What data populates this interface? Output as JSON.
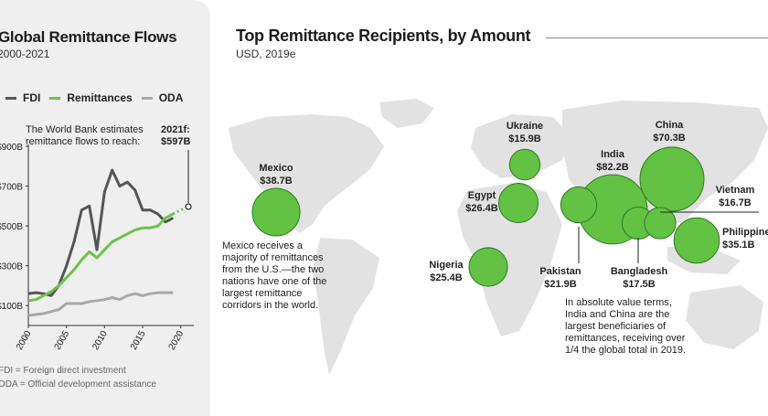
{
  "left": {
    "title": "Global Remittance Flows",
    "period": "2000-2021",
    "note": [
      "The World Bank estimates",
      "remittance flows to reach:"
    ],
    "forecast_label": "2021f:",
    "forecast_value": "$597B",
    "footnote1": "FDI = Foreign direct investment",
    "footnote2": "ODA = Official development assistance"
  },
  "right": {
    "title": "Top Remittance Recipients, by Amount",
    "subtitle": "USD, 2019e",
    "mexico_note": [
      "Mexico receives a",
      "majority of remittances",
      "from the U.S.—the two",
      "nations have one of the",
      "largest remittance",
      "corridors in the world."
    ],
    "asia_note": [
      "In absolute value terms,",
      "India and China are the",
      "largest beneficiaries of",
      "remittances, receiving over",
      "1/4 the global total in 2019."
    ]
  },
  "colors": {
    "fdi": "#555555",
    "remittances": "#6cc24a",
    "oda": "#a8a8a8",
    "bubble": "#63c143",
    "bubble_stroke": "#2f7a22",
    "map": "#e2e2e2"
  },
  "chart_data": [
    {
      "type": "line",
      "title": "Global Remittance Flows",
      "subtitle": "2000-2021",
      "xlim": [
        2000,
        2021
      ],
      "ylim": [
        0,
        900
      ],
      "x_ticks": [
        "2000",
        "2005",
        "2010",
        "2015",
        "2020"
      ],
      "y_ticks": [
        "$100B",
        "$300B",
        "$500B",
        "$700B",
        "$900B"
      ],
      "legend": [
        "FDI",
        "Remittances",
        "ODA"
      ],
      "series": [
        {
          "name": "FDI",
          "x": [
            2000,
            2001,
            2002,
            2003,
            2004,
            2005,
            2006,
            2007,
            2008,
            2009,
            2010,
            2011,
            2012,
            2013,
            2014,
            2015,
            2016,
            2017,
            2018,
            2019
          ],
          "values": [
            160,
            165,
            160,
            150,
            200,
            300,
            420,
            580,
            600,
            380,
            670,
            780,
            700,
            720,
            680,
            580,
            580,
            560,
            520,
            540
          ]
        },
        {
          "name": "Remittances",
          "x": [
            2000,
            2001,
            2002,
            2003,
            2004,
            2005,
            2006,
            2007,
            2008,
            2009,
            2010,
            2011,
            2012,
            2013,
            2014,
            2015,
            2016,
            2017,
            2018,
            2019
          ],
          "values": [
            125,
            130,
            150,
            170,
            200,
            240,
            280,
            330,
            370,
            340,
            380,
            420,
            440,
            460,
            480,
            490,
            490,
            500,
            540,
            560
          ]
        },
        {
          "name": "Remittances (forecast)",
          "x": [
            2019,
            2020,
            2021
          ],
          "values": [
            560,
            580,
            597
          ]
        },
        {
          "name": "ODA",
          "x": [
            2000,
            2001,
            2002,
            2003,
            2004,
            2005,
            2006,
            2007,
            2008,
            2009,
            2010,
            2011,
            2012,
            2013,
            2014,
            2015,
            2016,
            2017,
            2018,
            2019
          ],
          "values": [
            50,
            55,
            60,
            70,
            80,
            110,
            110,
            110,
            120,
            125,
            130,
            140,
            130,
            150,
            160,
            150,
            160,
            165,
            165,
            165
          ]
        }
      ]
    },
    {
      "type": "bubble-map",
      "title": "Top Remittance Recipients, by Amount",
      "subtitle": "USD, 2019e",
      "unit": "USD billions",
      "points": [
        {
          "country": "Mexico",
          "value": 38.7,
          "label": "$38.7B"
        },
        {
          "country": "Ukraine",
          "value": 15.9,
          "label": "$15.9B"
        },
        {
          "country": "Egypt",
          "value": 26.4,
          "label": "$26.4B"
        },
        {
          "country": "Nigeria",
          "value": 25.4,
          "label": "$25.4B"
        },
        {
          "country": "India",
          "value": 82.2,
          "label": "$82.2B"
        },
        {
          "country": "China",
          "value": 70.3,
          "label": "$70.3B"
        },
        {
          "country": "Vietnam",
          "value": 16.7,
          "label": "$16.7B"
        },
        {
          "country": "Philippines",
          "value": 35.1,
          "label": "$35.1B"
        },
        {
          "country": "Pakistan",
          "value": 21.9,
          "label": "$21.9B"
        },
        {
          "country": "Bangladesh",
          "value": 17.5,
          "label": "$17.5B"
        }
      ]
    }
  ]
}
